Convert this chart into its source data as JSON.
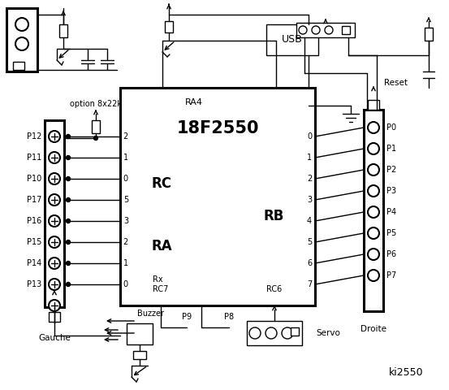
{
  "bg_color": "#ffffff",
  "lc": "#000000",
  "title": "ki2550",
  "chip_label": "18F2550",
  "chip_sub": "RA4",
  "rc_label": "RC",
  "ra_label": "RA",
  "rb_label": "RB",
  "left_pins": [
    "P12",
    "P11",
    "P10",
    "P17",
    "P16",
    "P15",
    "P14",
    "P13"
  ],
  "rc_nums": [
    "2",
    "1",
    "0"
  ],
  "ra_nums": [
    "5",
    "3",
    "2",
    "1",
    "0"
  ],
  "right_pins": [
    "P0",
    "P1",
    "P2",
    "P3",
    "P4",
    "P5",
    "P6",
    "P7"
  ],
  "right_nums": [
    "0",
    "1",
    "2",
    "3",
    "4",
    "5",
    "6",
    "7"
  ],
  "left_group": "Gauche",
  "right_group": "Droite",
  "option_label": "option 8x22k",
  "reset_label": "Reset",
  "usb_label": "USB",
  "rc6_label": "RC6",
  "rc7_label": "RC7",
  "rx_label": "Rx",
  "buzzer_label": "Buzzer",
  "p9_label": "P9",
  "p8_label": "P8",
  "servo_label": "Servo"
}
